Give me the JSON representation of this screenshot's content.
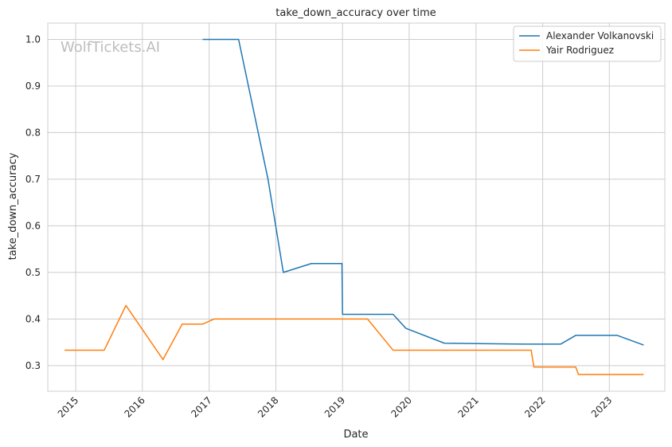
{
  "chart_data": {
    "type": "line",
    "title": "take_down_accuracy over time",
    "xlabel": "Date",
    "ylabel": "take_down_accuracy",
    "watermark": "WolfTickets.AI",
    "x_ticks": [
      "2015",
      "2016",
      "2017",
      "2018",
      "2019",
      "2020",
      "2021",
      "2022",
      "2023"
    ],
    "y_ticks": [
      "0.3",
      "0.4",
      "0.5",
      "0.6",
      "0.7",
      "0.8",
      "0.9",
      "1.0"
    ],
    "xlim": [
      "2014-08-01",
      "2023-11-01"
    ],
    "ylim": [
      0.245,
      1.035
    ],
    "grid": true,
    "legend_position": "top-right",
    "colors": {
      "Alexander Volkanovski": "#1f77b4",
      "Yair Rodriguez": "#ff7f0e"
    },
    "series": [
      {
        "name": "Alexander Volkanovski",
        "points": [
          [
            "2016-11-26",
            1.0
          ],
          [
            "2017-06-11",
            1.0
          ],
          [
            "2017-11-19",
            0.7
          ],
          [
            "2018-02-11",
            0.5
          ],
          [
            "2018-07-14",
            0.519
          ],
          [
            "2018-12-29",
            0.519
          ],
          [
            "2019-01-01",
            0.41
          ],
          [
            "2019-10-05",
            0.41
          ],
          [
            "2019-12-14",
            0.38
          ],
          [
            "2020-07-12",
            0.348
          ],
          [
            "2021-09-25",
            0.346
          ],
          [
            "2022-04-09",
            0.346
          ],
          [
            "2022-07-02",
            0.365
          ],
          [
            "2023-02-12",
            0.365
          ],
          [
            "2023-07-08",
            0.344
          ]
        ]
      },
      {
        "name": "Yair Rodriguez",
        "points": [
          [
            "2014-11-01",
            0.333
          ],
          [
            "2015-06-06",
            0.333
          ],
          [
            "2015-10-03",
            0.429
          ],
          [
            "2016-04-23",
            0.313
          ],
          [
            "2016-08-06",
            0.389
          ],
          [
            "2016-11-26",
            0.389
          ],
          [
            "2017-01-28",
            0.4
          ],
          [
            "2019-05-18",
            0.4
          ],
          [
            "2019-10-05",
            0.333
          ],
          [
            "2021-10-30",
            0.333
          ],
          [
            "2021-11-14",
            0.297
          ],
          [
            "2022-07-01",
            0.297
          ],
          [
            "2022-07-16",
            0.281
          ],
          [
            "2023-07-08",
            0.281
          ]
        ]
      }
    ]
  }
}
